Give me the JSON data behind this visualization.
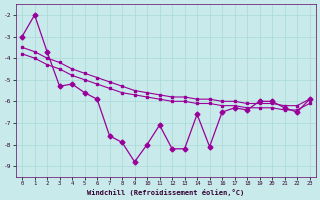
{
  "bg_color": "#c8eaea",
  "line_color": "#990099",
  "grid_color": "#a8d8d8",
  "xlabel": "Windchill (Refroidissement éolien,°C)",
  "xlim": [
    -0.5,
    23.5
  ],
  "ylim": [
    -9.5,
    -1.5
  ],
  "yticks": [
    -9,
    -8,
    -7,
    -6,
    -5,
    -4,
    -3,
    -2
  ],
  "xticks": [
    0,
    1,
    2,
    3,
    4,
    5,
    6,
    7,
    8,
    9,
    10,
    11,
    12,
    13,
    14,
    15,
    16,
    17,
    18,
    19,
    20,
    21,
    22,
    23
  ],
  "line_jagged_x": [
    0,
    1,
    2,
    3,
    4,
    5,
    6,
    7,
    8,
    9,
    10,
    11,
    12,
    13,
    14,
    15,
    16,
    17,
    18,
    19,
    20,
    21,
    22,
    23
  ],
  "line_jagged_y": [
    -3.0,
    -2.0,
    -3.7,
    -5.3,
    -5.2,
    -5.6,
    -5.9,
    -7.6,
    -7.9,
    -8.8,
    -8.0,
    -7.1,
    -8.2,
    -8.2,
    -6.6,
    -8.1,
    -6.5,
    -6.3,
    -6.4,
    -6.0,
    -6.0,
    -6.3,
    -6.5,
    -5.9
  ],
  "line_smooth1_x": [
    0,
    1,
    2,
    3,
    4,
    5,
    6,
    7,
    8,
    9,
    10,
    11,
    12,
    13,
    14,
    15,
    16,
    17,
    18,
    19,
    20,
    21,
    22,
    23
  ],
  "line_smooth1_y": [
    -3.5,
    -3.7,
    -4.0,
    -4.2,
    -4.5,
    -4.7,
    -4.9,
    -5.1,
    -5.3,
    -5.5,
    -5.6,
    -5.7,
    -5.8,
    -5.8,
    -5.9,
    -5.9,
    -6.0,
    -6.0,
    -6.1,
    -6.1,
    -6.1,
    -6.2,
    -6.2,
    -5.9
  ],
  "line_smooth2_x": [
    0,
    1,
    2,
    3,
    4,
    5,
    6,
    7,
    8,
    9,
    10,
    11,
    12,
    13,
    14,
    15,
    16,
    17,
    18,
    19,
    20,
    21,
    22,
    23
  ],
  "line_smooth2_y": [
    -3.8,
    -4.0,
    -4.3,
    -4.5,
    -4.8,
    -5.0,
    -5.2,
    -5.4,
    -5.6,
    -5.7,
    -5.8,
    -5.9,
    -6.0,
    -6.0,
    -6.1,
    -6.1,
    -6.2,
    -6.2,
    -6.3,
    -6.3,
    -6.3,
    -6.4,
    -6.4,
    -6.1
  ]
}
